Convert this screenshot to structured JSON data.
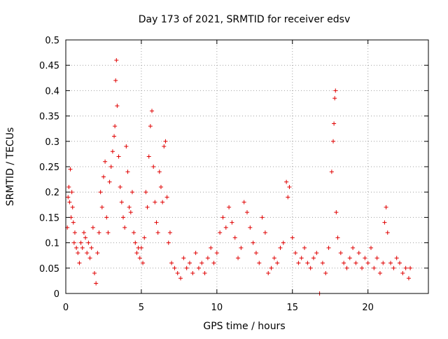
{
  "chart_data": {
    "type": "scatter",
    "title": "Day 173 of 2021, SRMTID for receiver edsv",
    "xlabel": "GPS time / hours",
    "ylabel": "SRMTID / TECUs",
    "xlim": [
      0,
      24
    ],
    "ylim": [
      0,
      0.5
    ],
    "xticks": [
      "0",
      "5",
      "10",
      "15",
      "20"
    ],
    "yticks": [
      "0",
      "0.05",
      "0.1",
      "0.15",
      "0.2",
      "0.25",
      "0.3",
      "0.35",
      "0.4",
      "0.45",
      "0.5"
    ],
    "grid": true,
    "marker": "plus",
    "color": "#e00000",
    "series": [
      {
        "name": "SRMTID",
        "points": [
          [
            0.1,
            0.13
          ],
          [
            0.15,
            0.19
          ],
          [
            0.2,
            0.21
          ],
          [
            0.25,
            0.18
          ],
          [
            0.3,
            0.245
          ],
          [
            0.35,
            0.15
          ],
          [
            0.4,
            0.2
          ],
          [
            0.45,
            0.17
          ],
          [
            0.5,
            0.14
          ],
          [
            0.55,
            0.1
          ],
          [
            0.6,
            0.12
          ],
          [
            0.7,
            0.09
          ],
          [
            0.8,
            0.08
          ],
          [
            0.9,
            0.06
          ],
          [
            1.0,
            0.1
          ],
          [
            1.1,
            0.09
          ],
          [
            1.2,
            0.12
          ],
          [
            1.3,
            0.11
          ],
          [
            1.4,
            0.08
          ],
          [
            1.5,
            0.1
          ],
          [
            1.6,
            0.07
          ],
          [
            1.7,
            0.09
          ],
          [
            1.8,
            0.13
          ],
          [
            1.9,
            0.04
          ],
          [
            2.0,
            0.02
          ],
          [
            2.1,
            0.08
          ],
          [
            2.2,
            0.12
          ],
          [
            2.3,
            0.2
          ],
          [
            2.4,
            0.17
          ],
          [
            2.5,
            0.23
          ],
          [
            2.6,
            0.26
          ],
          [
            2.7,
            0.15
          ],
          [
            2.8,
            0.12
          ],
          [
            2.9,
            0.22
          ],
          [
            3.0,
            0.25
          ],
          [
            3.1,
            0.28
          ],
          [
            3.2,
            0.31
          ],
          [
            3.25,
            0.33
          ],
          [
            3.3,
            0.42
          ],
          [
            3.35,
            0.46
          ],
          [
            3.4,
            0.37
          ],
          [
            3.5,
            0.27
          ],
          [
            3.6,
            0.21
          ],
          [
            3.7,
            0.18
          ],
          [
            3.8,
            0.15
          ],
          [
            3.9,
            0.13
          ],
          [
            4.0,
            0.29
          ],
          [
            4.1,
            0.24
          ],
          [
            4.2,
            0.17
          ],
          [
            4.3,
            0.16
          ],
          [
            4.4,
            0.2
          ],
          [
            4.5,
            0.12
          ],
          [
            4.6,
            0.1
          ],
          [
            4.7,
            0.08
          ],
          [
            4.8,
            0.09
          ],
          [
            4.9,
            0.07
          ],
          [
            5.0,
            0.09
          ],
          [
            5.1,
            0.06
          ],
          [
            5.2,
            0.11
          ],
          [
            5.3,
            0.2
          ],
          [
            5.4,
            0.17
          ],
          [
            5.5,
            0.27
          ],
          [
            5.6,
            0.33
          ],
          [
            5.7,
            0.36
          ],
          [
            5.8,
            0.25
          ],
          [
            5.9,
            0.18
          ],
          [
            6.0,
            0.14
          ],
          [
            6.1,
            0.12
          ],
          [
            6.2,
            0.24
          ],
          [
            6.3,
            0.21
          ],
          [
            6.4,
            0.18
          ],
          [
            6.5,
            0.29
          ],
          [
            6.6,
            0.3
          ],
          [
            6.7,
            0.19
          ],
          [
            6.8,
            0.1
          ],
          [
            6.9,
            0.12
          ],
          [
            7.0,
            0.06
          ],
          [
            7.2,
            0.05
          ],
          [
            7.4,
            0.04
          ],
          [
            7.6,
            0.03
          ],
          [
            7.8,
            0.07
          ],
          [
            8.0,
            0.05
          ],
          [
            8.2,
            0.06
          ],
          [
            8.4,
            0.04
          ],
          [
            8.6,
            0.08
          ],
          [
            8.8,
            0.05
          ],
          [
            9.0,
            0.06
          ],
          [
            9.2,
            0.04
          ],
          [
            9.4,
            0.07
          ],
          [
            9.6,
            0.09
          ],
          [
            9.8,
            0.06
          ],
          [
            10.0,
            0.08
          ],
          [
            10.2,
            0.12
          ],
          [
            10.4,
            0.15
          ],
          [
            10.6,
            0.13
          ],
          [
            10.8,
            0.17
          ],
          [
            11.0,
            0.14
          ],
          [
            11.2,
            0.11
          ],
          [
            11.4,
            0.07
          ],
          [
            11.6,
            0.09
          ],
          [
            11.8,
            0.18
          ],
          [
            12.0,
            0.16
          ],
          [
            12.2,
            0.13
          ],
          [
            12.4,
            0.1
          ],
          [
            12.6,
            0.08
          ],
          [
            12.8,
            0.06
          ],
          [
            13.0,
            0.15
          ],
          [
            13.2,
            0.12
          ],
          [
            13.4,
            0.04
          ],
          [
            13.6,
            0.05
          ],
          [
            13.8,
            0.07
          ],
          [
            14.0,
            0.06
          ],
          [
            14.2,
            0.09
          ],
          [
            14.4,
            0.1
          ],
          [
            14.6,
            0.22
          ],
          [
            14.7,
            0.19
          ],
          [
            14.8,
            0.21
          ],
          [
            15.0,
            0.11
          ],
          [
            15.2,
            0.08
          ],
          [
            15.4,
            0.06
          ],
          [
            15.6,
            0.07
          ],
          [
            15.8,
            0.09
          ],
          [
            16.0,
            0.06
          ],
          [
            16.2,
            0.05
          ],
          [
            16.4,
            0.07
          ],
          [
            16.6,
            0.08
          ],
          [
            16.8,
            0.0
          ],
          [
            17.0,
            0.06
          ],
          [
            17.2,
            0.04
          ],
          [
            17.4,
            0.09
          ],
          [
            17.6,
            0.24
          ],
          [
            17.7,
            0.3
          ],
          [
            17.75,
            0.335
          ],
          [
            17.8,
            0.385
          ],
          [
            17.85,
            0.4
          ],
          [
            17.9,
            0.16
          ],
          [
            18.0,
            0.11
          ],
          [
            18.2,
            0.08
          ],
          [
            18.4,
            0.06
          ],
          [
            18.6,
            0.05
          ],
          [
            18.8,
            0.07
          ],
          [
            19.0,
            0.09
          ],
          [
            19.2,
            0.06
          ],
          [
            19.4,
            0.08
          ],
          [
            19.6,
            0.05
          ],
          [
            19.8,
            0.07
          ],
          [
            20.0,
            0.06
          ],
          [
            20.2,
            0.09
          ],
          [
            20.4,
            0.05
          ],
          [
            20.6,
            0.07
          ],
          [
            20.8,
            0.04
          ],
          [
            21.0,
            0.06
          ],
          [
            21.1,
            0.14
          ],
          [
            21.2,
            0.17
          ],
          [
            21.3,
            0.12
          ],
          [
            21.5,
            0.06
          ],
          [
            21.7,
            0.05
          ],
          [
            21.9,
            0.07
          ],
          [
            22.1,
            0.06
          ],
          [
            22.3,
            0.04
          ],
          [
            22.5,
            0.05
          ],
          [
            22.7,
            0.03
          ],
          [
            22.8,
            0.05
          ]
        ]
      }
    ]
  }
}
